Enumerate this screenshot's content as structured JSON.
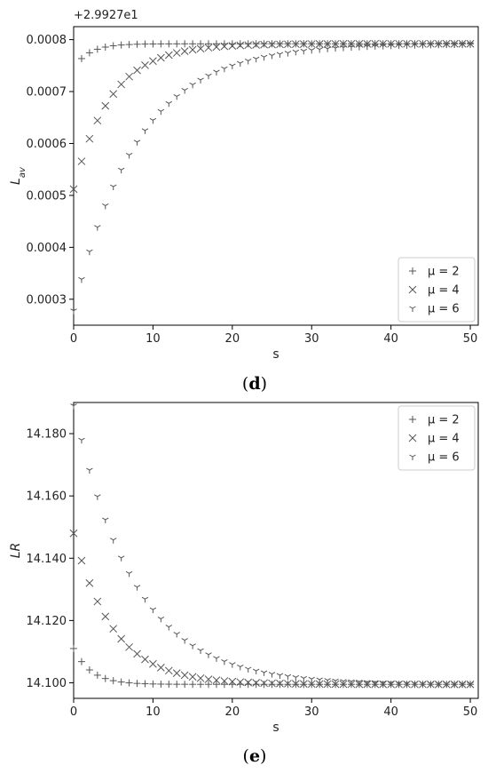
{
  "chart_data": [
    {
      "type": "scatter",
      "caption": "d",
      "offset_label": "+2.9927e1",
      "xlabel": "s",
      "ylabel": "L_av",
      "xlim": [
        0,
        51
      ],
      "ylim": [
        0.00025,
        0.000825
      ],
      "xticks": [
        0,
        10,
        20,
        30,
        40,
        50
      ],
      "yticks": [
        0.0003,
        0.0004,
        0.0005,
        0.0006,
        0.0007,
        0.0008
      ],
      "ytick_labels": [
        "0.0003",
        "0.0004",
        "0.0005",
        "0.0006",
        "0.0007",
        "0.0008"
      ],
      "legend_position": "bottom-right",
      "series": [
        {
          "name": "μ = 2",
          "marker": "plus",
          "y0": 0.000745,
          "yinf": 0.000792,
          "tau": 2.0,
          "x_from": 1
        },
        {
          "name": "μ = 4",
          "marker": "x",
          "y0": 0.000512,
          "yinf": 0.000792,
          "tau": 4.7,
          "x_from": 0
        },
        {
          "name": "μ = 6",
          "marker": "tri",
          "y0": 0.000278,
          "yinf": 0.000792,
          "tau": 8.0,
          "x_from": 0
        }
      ]
    },
    {
      "type": "scatter",
      "caption": "e",
      "offset_label": "",
      "xlabel": "s",
      "ylabel": "LR",
      "xlim": [
        0,
        51
      ],
      "ylim": [
        14.095,
        14.19
      ],
      "xticks": [
        0,
        10,
        20,
        30,
        40,
        50
      ],
      "yticks": [
        14.1,
        14.12,
        14.14,
        14.16,
        14.18
      ],
      "ytick_labels": [
        "14.100",
        "14.120",
        "14.140",
        "14.160",
        "14.180"
      ],
      "legend_position": "top-right",
      "series": [
        {
          "name": "μ = 2",
          "marker": "plus",
          "y0": 14.111,
          "yinf": 14.0995,
          "tau": 2.2,
          "x_from": 0
        },
        {
          "name": "μ = 4",
          "marker": "x",
          "y0": 14.148,
          "yinf": 14.0995,
          "tau": 5.0,
          "x_from": 0
        },
        {
          "name": "μ = 6",
          "marker": "tri",
          "y0": 14.189,
          "yinf": 14.0995,
          "tau": 7.6,
          "x_from": 0
        }
      ]
    }
  ]
}
